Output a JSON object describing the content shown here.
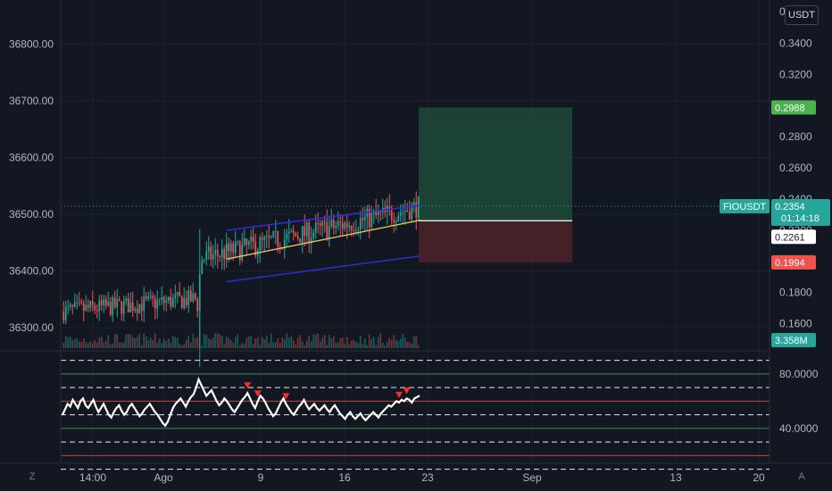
{
  "currency_badge": "USDT",
  "top_edge_label": "0",
  "buttons": {
    "timezone": "Z",
    "auto_scale": "A"
  },
  "colors": {
    "background": "#131722",
    "grid": "#1e2230",
    "up": "#26a69a",
    "down": "#ef5350",
    "channel": "#2a2fd9",
    "trend": "#e9c46a",
    "target_zone": "#1e4a3a",
    "stop_zone": "#4a2228",
    "rsi_line": "#ffffff",
    "rsi_band_red": "#ef5350",
    "rsi_band_green": "#4caf50",
    "marker": "#ff2a2a"
  },
  "chart_data": [
    {
      "type": "candlestick",
      "title": "",
      "symbol": "FIOUSDT",
      "left_axis": {
        "ticks": [
          "36300.00",
          "36400.00",
          "36500.00",
          "36600.00",
          "36700.00",
          "36800.00"
        ],
        "range": [
          36270,
          36880
        ]
      },
      "right_axis": {
        "ticks": [
          "0.1600",
          "0.1800",
          "0.2000",
          "0.2200",
          "0.2400",
          "0.2600",
          "0.2800",
          "0.3000",
          "0.3200",
          "0.3400"
        ],
        "range": [
          0.1535,
          0.358
        ]
      },
      "x_ticks": [
        "14:00",
        "Ago",
        "9",
        "16",
        "23",
        "Sep",
        "13",
        "20"
      ],
      "price_tags": [
        {
          "label": "0.2988",
          "value": 0.2988,
          "color": "#4caf50"
        },
        {
          "label": "FIOUSDT",
          "value": 0.2354,
          "color": "#26a69a"
        },
        {
          "label": "0.2354",
          "value": 0.2354,
          "color": "#26a69a"
        },
        {
          "label": "01:14:18",
          "value": 0.2354,
          "color": "#26a69a"
        },
        {
          "label": "0.2261",
          "value": 0.2261,
          "color": "#ffffff"
        },
        {
          "label": "0.1994",
          "value": 0.1994,
          "color": "#ef5350"
        },
        {
          "label": "3.358M",
          "value": 0.1526,
          "color": "#26a69a"
        }
      ],
      "current_price": 0.2354,
      "position": {
        "entry": 0.2261,
        "target": 0.2988,
        "stop": 0.1994
      },
      "channel": {
        "upper": [
          0.22,
          0.236
        ],
        "lower": [
          0.187,
          0.2035
        ],
        "mid": [
          0.2015,
          0.2265
        ]
      },
      "candles_approx": {
        "count": 160,
        "phases": [
          {
            "from": 0,
            "to": 60,
            "start": 0.168,
            "end": 0.176,
            "volatility": 0.006
          },
          {
            "from": 60,
            "to": 62,
            "start": 0.176,
            "end": 0.205,
            "volatility": 0.012
          },
          {
            "from": 62,
            "to": 160,
            "start": 0.202,
            "end": 0.2354,
            "volatility": 0.007
          }
        ]
      }
    },
    {
      "type": "line",
      "title": "",
      "indicator": "RSI",
      "y_ticks": [
        "40.0000",
        "80.0000"
      ],
      "ylim": [
        15,
        95
      ],
      "bands": [
        {
          "value": 90,
          "style": "dashed",
          "color": "#ffffff"
        },
        {
          "value": 80,
          "style": "solid",
          "color": "#4caf50"
        },
        {
          "value": 70,
          "style": "dashed",
          "color": "#ffffff"
        },
        {
          "value": 60,
          "style": "solid",
          "color": "#ef5350"
        },
        {
          "value": 50,
          "style": "dashed",
          "color": "#ffffff"
        },
        {
          "value": 40,
          "style": "solid",
          "color": "#4caf50"
        },
        {
          "value": 30,
          "style": "dashed",
          "color": "#ffffff"
        },
        {
          "value": 20,
          "style": "solid",
          "color": "#ef5350"
        },
        {
          "value": 10,
          "style": "dashed",
          "color": "#ffffff"
        }
      ],
      "series": [
        {
          "values": [
            50,
            54,
            58,
            56,
            61,
            58,
            55,
            60,
            62,
            57,
            55,
            58,
            61,
            56,
            52,
            55,
            58,
            54,
            50,
            48,
            52,
            55,
            57,
            53,
            50,
            52,
            56,
            58,
            55,
            52,
            49,
            51,
            54,
            56,
            58,
            55,
            52,
            50,
            47,
            44,
            42,
            45,
            50,
            55,
            58,
            60,
            62,
            59,
            56,
            60,
            63,
            65,
            70,
            76,
            72,
            68,
            64,
            66,
            68,
            64,
            60,
            57,
            59,
            62,
            60,
            57,
            54,
            52,
            55,
            58,
            61,
            63,
            66,
            62,
            58,
            55,
            60,
            64,
            62,
            59,
            55,
            52,
            49,
            51,
            55,
            59,
            62,
            58,
            55,
            52,
            50,
            53,
            56,
            58,
            61,
            57,
            54,
            56,
            58,
            55,
            53,
            55,
            57,
            54,
            52,
            55,
            57,
            54,
            51,
            49,
            47,
            50,
            52,
            49,
            47,
            49,
            51,
            48,
            46,
            48,
            50,
            52,
            50,
            48,
            51,
            53,
            55,
            57,
            56,
            58,
            60,
            59,
            61,
            60,
            62,
            61,
            59,
            62,
            63,
            64
          ]
        }
      ],
      "markers_at_index": [
        88,
        93,
        106,
        160,
        164
      ]
    }
  ]
}
